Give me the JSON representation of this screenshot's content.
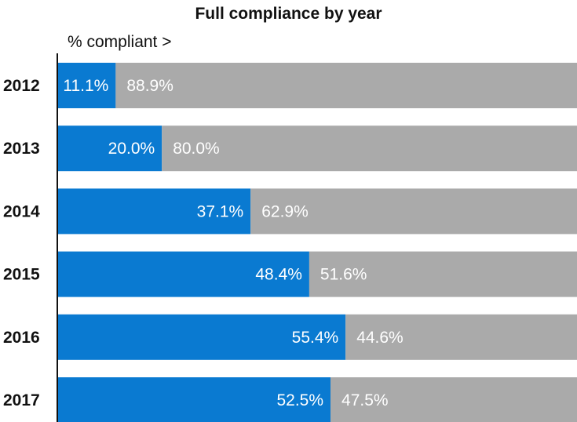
{
  "chart_data": {
    "type": "bar",
    "orientation": "horizontal",
    "stacked": true,
    "title": "Full compliance by year",
    "xlabel": "% compliant >",
    "ylabel": "",
    "xlim": [
      0,
      100
    ],
    "grid": false,
    "categories": [
      "2012",
      "2013",
      "2014",
      "2015",
      "2016",
      "2017"
    ],
    "series": [
      {
        "values": [
          11.1,
          20.0,
          37.1,
          48.4,
          55.4,
          52.5
        ],
        "labels": [
          "11.1%",
          "20.0%",
          "37.1%",
          "48.4%",
          "55.4%",
          "52.5%"
        ],
        "color": "#0a7ad1"
      },
      {
        "values": [
          88.9,
          80.0,
          62.9,
          51.6,
          44.6,
          47.5
        ],
        "labels": [
          "88.9%",
          "80.0%",
          "62.9%",
          "51.6%",
          "44.6%",
          "47.5%"
        ],
        "color": "#aaaaaa"
      }
    ]
  }
}
